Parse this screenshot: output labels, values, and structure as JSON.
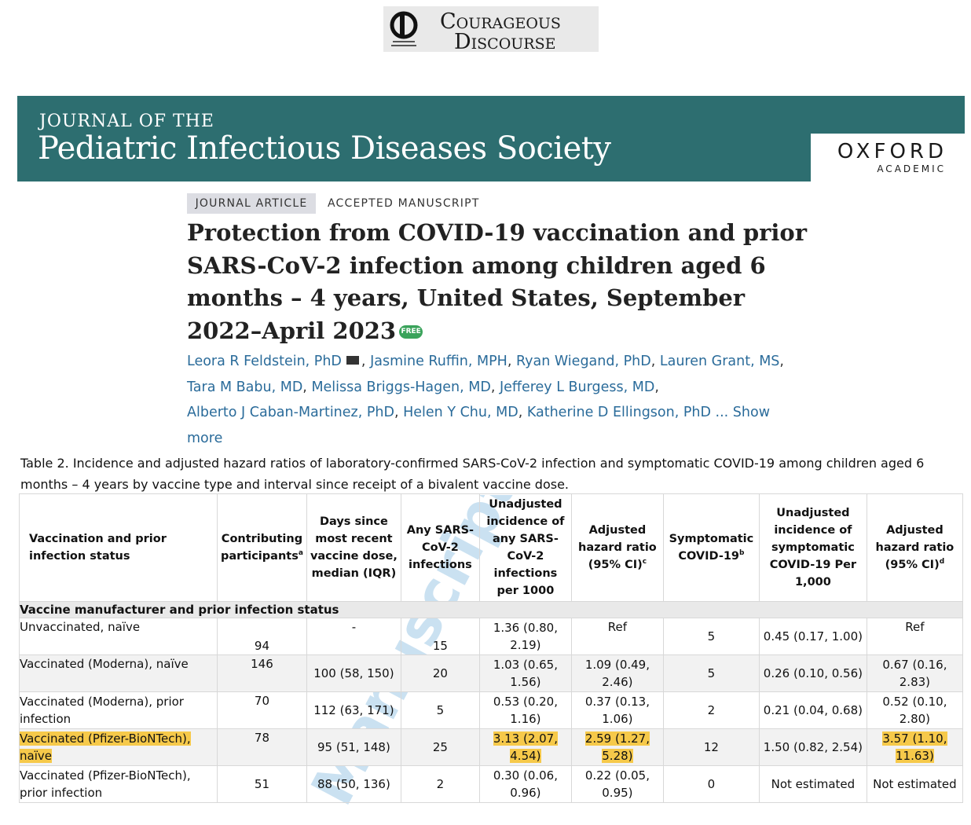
{
  "logo": {
    "line1": "Courageous",
    "line2": "Discourse"
  },
  "journal": {
    "name_top": "JOURNAL OF THE",
    "name_main": "Pediatric Infectious Diseases Society",
    "publisher_top": "OXFORD",
    "publisher_bottom": "ACADEMIC"
  },
  "article": {
    "type_tag": "JOURNAL ARTICLE",
    "status_tag": "ACCEPTED MANUSCRIPT",
    "title": "Protection from COVID-19 vaccination and prior SARS-CoV-2 infection among children aged 6 months – 4 years, United States, September 2022–April 2023",
    "free_badge": "FREE",
    "authors": [
      "Leora R Feldstein, PhD",
      "Jasmine Ruffin, MPH",
      "Ryan Wiegand, PhD",
      "Lauren Grant, MS",
      "Tara M Babu, MD",
      "Melissa Briggs-Hagen, MD",
      "Jefferey L Burgess, MD",
      "Alberto J Caban-Martinez, PhD",
      "Helen Y Chu, MD",
      "Katherine D Ellingson, PhD"
    ],
    "show_more": "... Show more"
  },
  "table": {
    "caption": "Table 2. Incidence and adjusted hazard ratios of laboratory-confirmed SARS-CoV-2 infection and symptomatic COVID-19 among children aged 6 months – 4 years by vaccine type and interval since receipt of a bivalent vaccine dose.",
    "headers": [
      {
        "text": "Vaccination and prior infection status",
        "sup": ""
      },
      {
        "text": "Contributing participants",
        "sup": "a"
      },
      {
        "text": "Days since most recent vaccine dose, median (IQR)",
        "sup": ""
      },
      {
        "text": "Any SARS-CoV-2 infections",
        "sup": ""
      },
      {
        "text": "Unadjusted incidence of any SARS-CoV-2 infections per 1000",
        "sup": ""
      },
      {
        "text": "Adjusted hazard ratio (95% CI)",
        "sup": "c"
      },
      {
        "text": "Symptomatic COVID-19",
        "sup": "b"
      },
      {
        "text": "Unadjusted incidence of symptomatic COVID-19 Per 1,000",
        "sup": ""
      },
      {
        "text": "Adjusted hazard ratio (95% CI)",
        "sup": "d"
      }
    ],
    "section": "Vaccine manufacturer and prior infection status",
    "rows": [
      [
        "Unvaccinated, naïve",
        "94",
        "-",
        "15",
        "1.36 (0.80, 2.19)",
        "Ref",
        "5",
        "0.45 (0.17, 1.00)",
        "Ref"
      ],
      [
        "Vaccinated (Moderna), naïve",
        "146",
        "100 (58, 150)",
        "20",
        "1.03 (0.65, 1.56)",
        "1.09 (0.49, 2.46)",
        "5",
        "0.26 (0.10, 0.56)",
        "0.67 (0.16, 2.83)"
      ],
      [
        "Vaccinated (Moderna), prior infection",
        "70",
        "112 (63, 171)",
        "5",
        "0.53 (0.20, 1.16)",
        "0.37 (0.13, 1.06)",
        "2",
        "0.21 (0.04, 0.68)",
        "0.52 (0.10, 2.80)"
      ],
      [
        "Vaccinated (Pfizer-BioNTech), naïve",
        "78",
        "95 (51, 148)",
        "25",
        "3.13 (2.07, 4.54)",
        "2.59 (1.27, 5.28)",
        "12",
        "1.50 (0.82, 2.54)",
        "3.57 (1.10, 11.63)"
      ],
      [
        "Vaccinated (Pfizer-BioNTech), prior infection",
        "51",
        "88 (50, 136)",
        "2",
        "0.30 (0.06, 0.96)",
        "0.22 (0.05, 0.95)",
        "0",
        "Not estimated",
        "Not estimated"
      ]
    ],
    "watermark": "Manuscript",
    "highlight_color": "#f6c94a"
  }
}
